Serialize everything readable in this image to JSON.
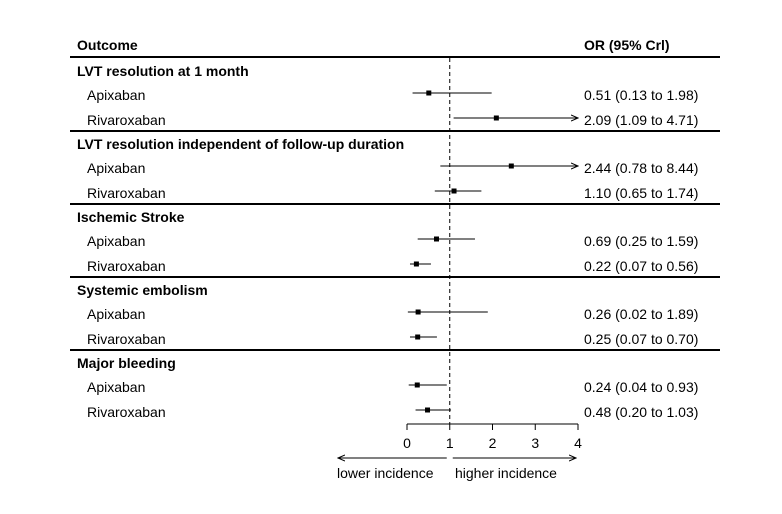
{
  "header": {
    "outcome_label": "Outcome",
    "or_label": "OR (95% Crl)"
  },
  "groups": [
    {
      "title": "LVT resolution at 1 month",
      "rows": [
        {
          "label": "Apixaban",
          "text": "0.51 (0.13 to 1.98)"
        },
        {
          "label": "Rivaroxaban",
          "text": "2.09 (1.09 to 4.71)"
        }
      ]
    },
    {
      "title": "LVT resolution independent of follow-up duration",
      "rows": [
        {
          "label": "Apixaban",
          "text": "2.44 (0.78 to 8.44)"
        },
        {
          "label": "Rivaroxaban",
          "text": "1.10 (0.65 to 1.74)"
        }
      ]
    },
    {
      "title": "Ischemic Stroke",
      "rows": [
        {
          "label": "Apixaban",
          "text": "0.69 (0.25 to 1.59)"
        },
        {
          "label": "Rivaroxaban",
          "text": "0.22 (0.07 to 0.56)"
        }
      ]
    },
    {
      "title": "Systemic embolism",
      "rows": [
        {
          "label": "Apixaban",
          "text": "0.26 (0.02 to 1.89)"
        },
        {
          "label": "Rivaroxaban",
          "text": "0.25 (0.07 to 0.70)"
        }
      ]
    },
    {
      "title": "Major bleeding",
      "rows": [
        {
          "label": "Apixaban",
          "text": "0.24 (0.04 to 0.93)"
        },
        {
          "label": "Rivaroxaban",
          "text": "0.48 (0.20 to 1.03)"
        }
      ]
    }
  ],
  "chart_data": {
    "type": "forest",
    "xlim": [
      0,
      4
    ],
    "reference_line": 1,
    "x_ticks": [
      "0",
      "1",
      "2",
      "3",
      "4"
    ],
    "direction_labels": {
      "lower": "lower incidence",
      "higher": "higher incidence"
    },
    "series": [
      {
        "group": "LVT resolution at 1 month",
        "name": "Apixaban",
        "estimate": 0.51,
        "lower": 0.13,
        "upper": 1.98
      },
      {
        "group": "LVT resolution at 1 month",
        "name": "Rivaroxaban",
        "estimate": 2.09,
        "lower": 1.09,
        "upper": 4.71
      },
      {
        "group": "LVT resolution independent of follow-up duration",
        "name": "Apixaban",
        "estimate": 2.44,
        "lower": 0.78,
        "upper": 8.44
      },
      {
        "group": "LVT resolution independent of follow-up duration",
        "name": "Rivaroxaban",
        "estimate": 1.1,
        "lower": 0.65,
        "upper": 1.74
      },
      {
        "group": "Ischemic Stroke",
        "name": "Apixaban",
        "estimate": 0.69,
        "lower": 0.25,
        "upper": 1.59
      },
      {
        "group": "Ischemic Stroke",
        "name": "Rivaroxaban",
        "estimate": 0.22,
        "lower": 0.07,
        "upper": 0.56
      },
      {
        "group": "Systemic embolism",
        "name": "Apixaban",
        "estimate": 0.26,
        "lower": 0.02,
        "upper": 1.89
      },
      {
        "group": "Systemic embolism",
        "name": "Rivaroxaban",
        "estimate": 0.25,
        "lower": 0.07,
        "upper": 0.7
      },
      {
        "group": "Major bleeding",
        "name": "Apixaban",
        "estimate": 0.24,
        "lower": 0.04,
        "upper": 0.93
      },
      {
        "group": "Major bleeding",
        "name": "Rivaroxaban",
        "estimate": 0.48,
        "lower": 0.2,
        "upper": 1.03
      }
    ]
  }
}
